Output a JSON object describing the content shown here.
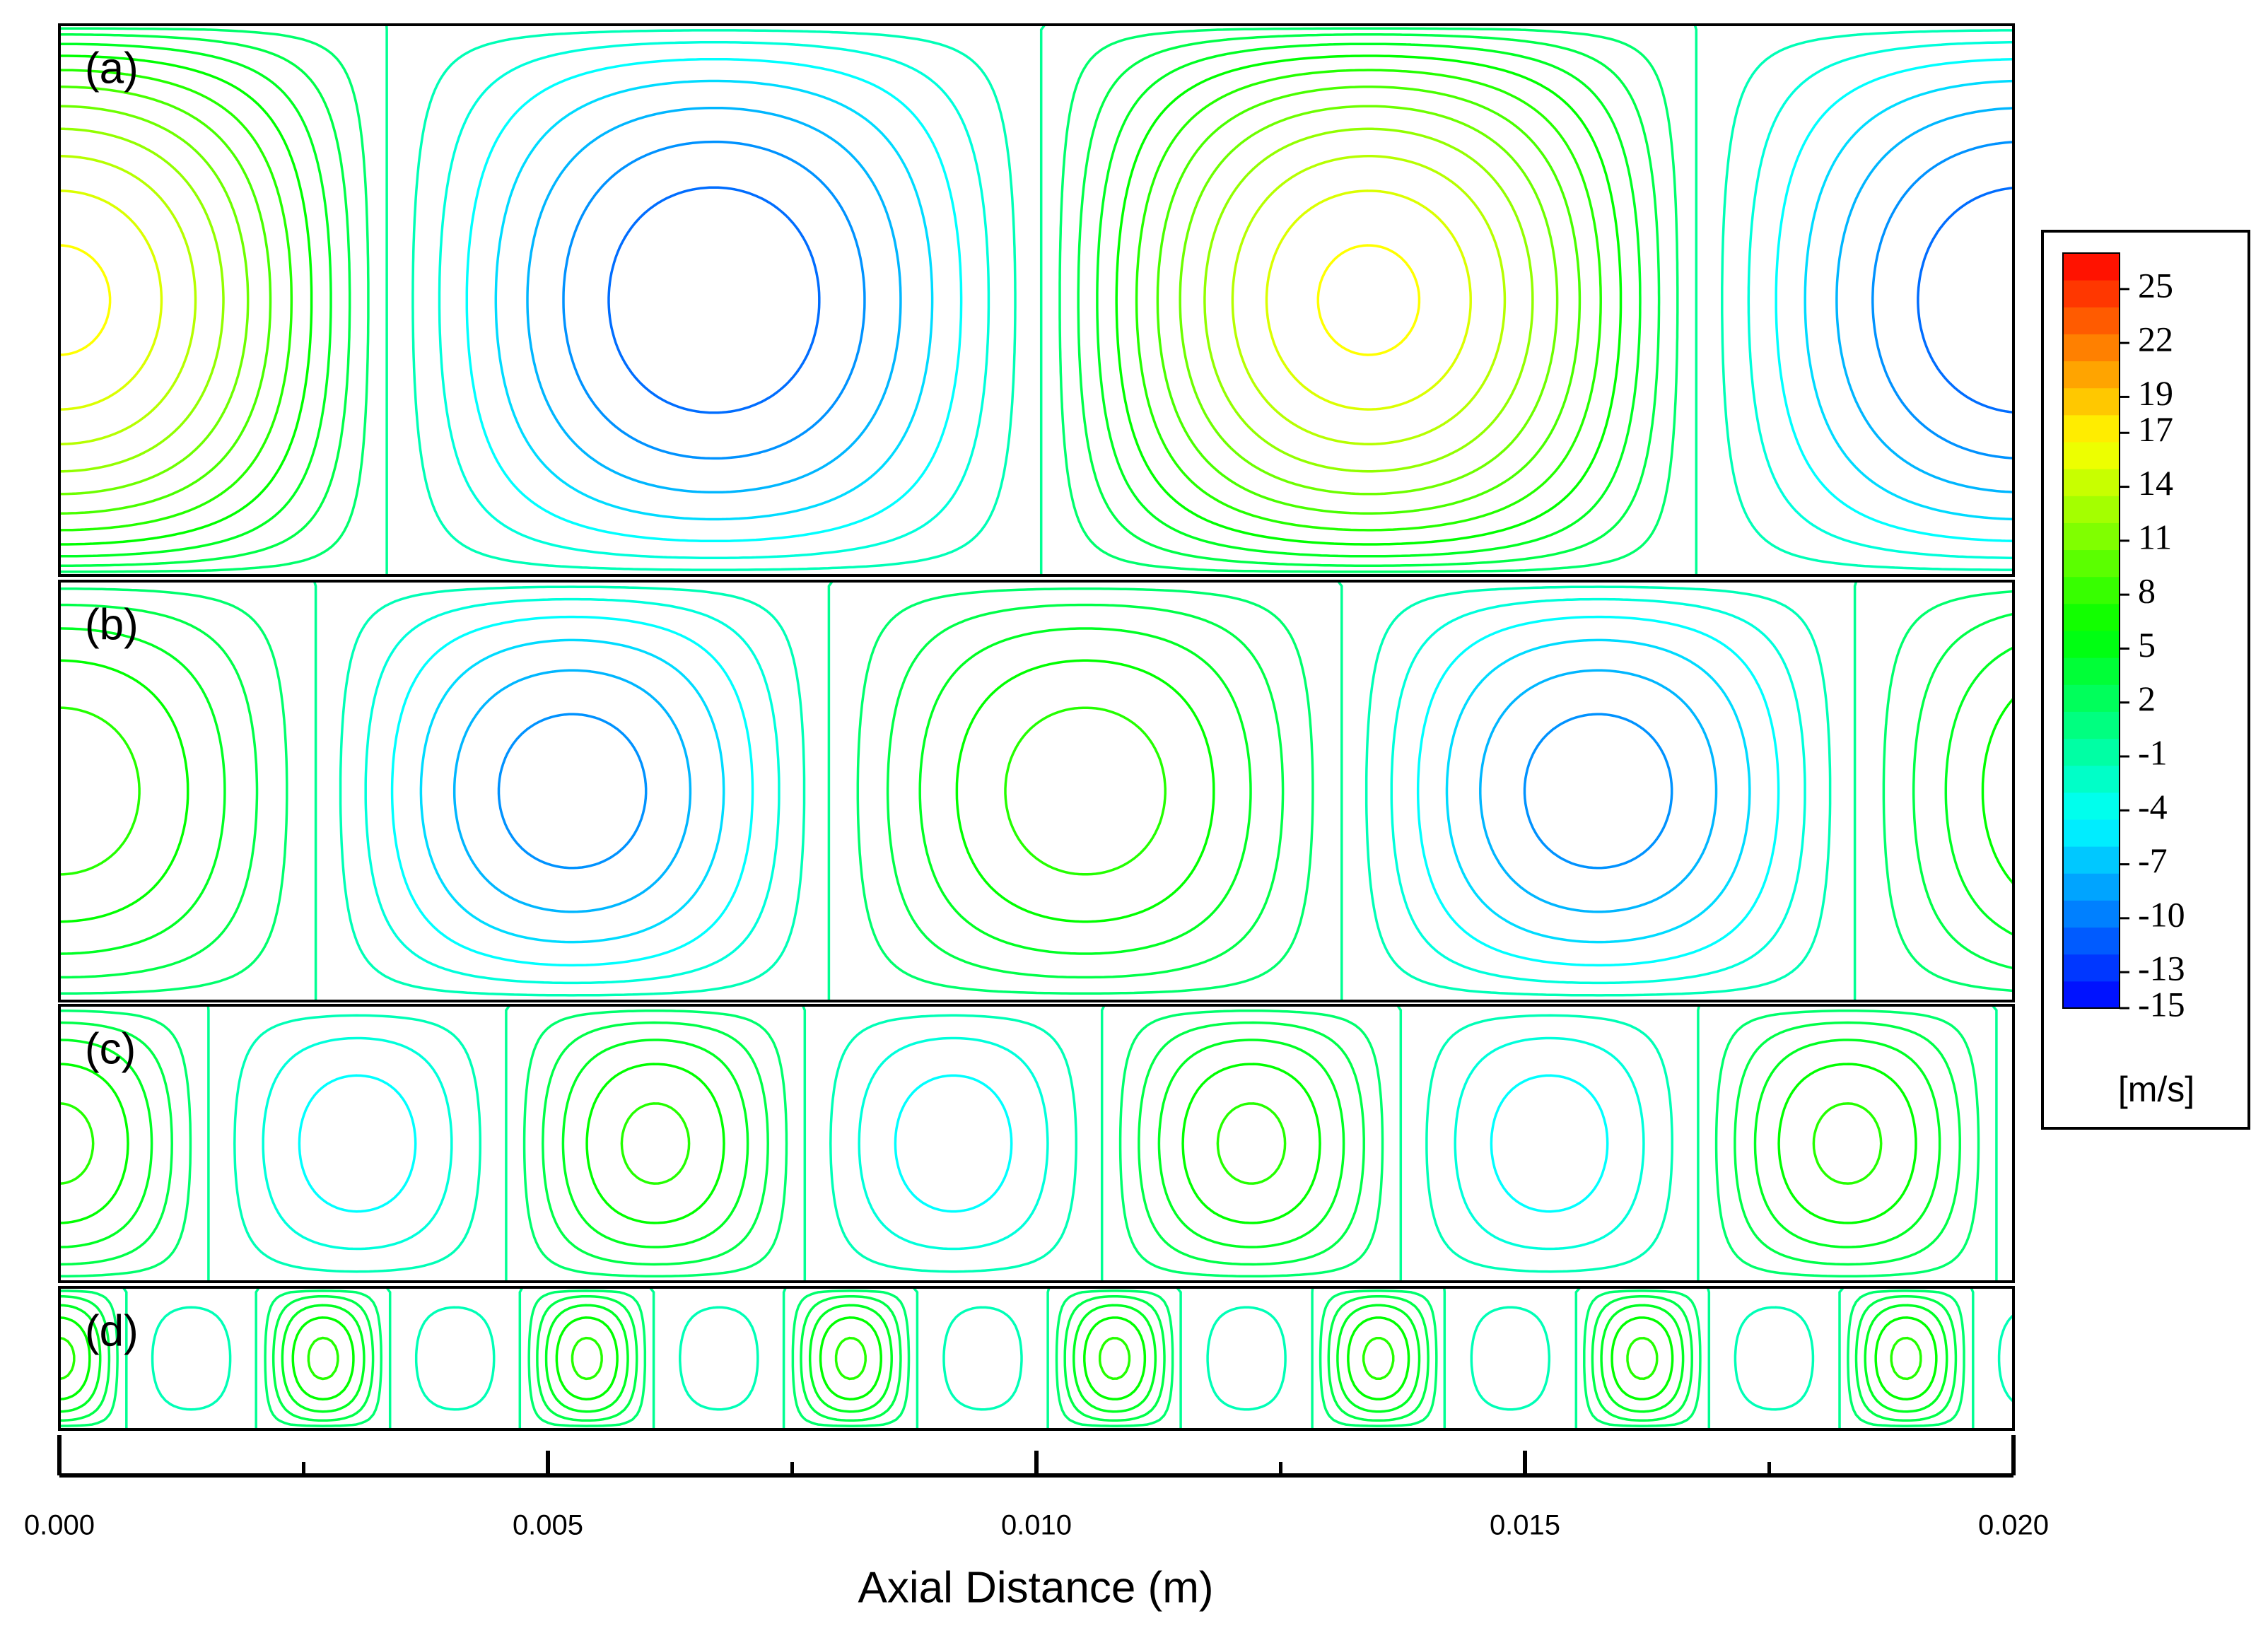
{
  "chart_data": {
    "type": "contour",
    "xlabel": "Axial Distance (m)",
    "xlim": [
      0,
      0.02
    ],
    "xticks": [
      {
        "value": 0,
        "label": "0.000"
      },
      {
        "value": 0.005,
        "label": "0.005"
      },
      {
        "value": 0.01,
        "label": "0.010"
      },
      {
        "value": 0.015,
        "label": "0.015"
      },
      {
        "value": 0.02,
        "label": "0.020"
      }
    ],
    "minor_xticks": [
      0.0025,
      0.0075,
      0.0125,
      0.0175
    ],
    "colorbar": {
      "unit": "[m/s]",
      "lim": [
        -15,
        27
      ],
      "bands": 28,
      "colormap": [
        "#0000ff",
        "#00ffff",
        "#00ff00",
        "#ffff00",
        "#ff0000"
      ],
      "ticks": [
        25,
        22,
        19,
        17,
        14,
        11,
        8,
        5,
        2,
        -1,
        -4,
        -7,
        -10,
        -13,
        -15
      ]
    },
    "panels": [
      {
        "label": "(a)",
        "wavelength": 0.0134,
        "max": 17,
        "min": -12
      },
      {
        "label": "(b)",
        "wavelength": 0.0105,
        "max": 8.5,
        "min": -10
      },
      {
        "label": "(c)",
        "wavelength": 0.0061,
        "max": 8,
        "min": -5.5
      },
      {
        "label": "(d)",
        "wavelength": 0.0027,
        "max": 8,
        "min": -2.5
      }
    ]
  }
}
